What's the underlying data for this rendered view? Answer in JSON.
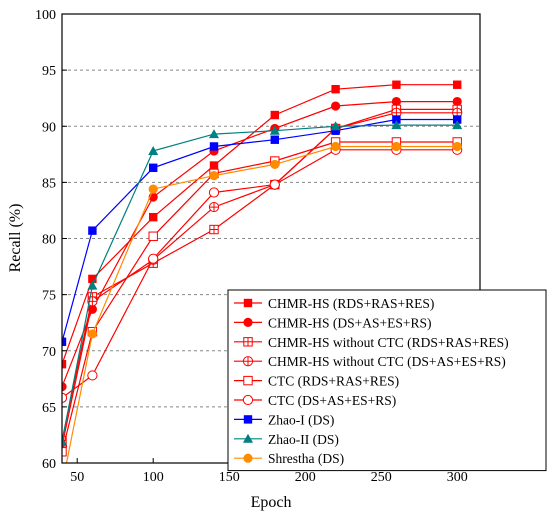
{
  "chart_data": {
    "type": "line",
    "xlabel": "Epoch",
    "ylabel": "Recall (%)",
    "xlim": [
      40,
      315
    ],
    "ylim": [
      60,
      100
    ],
    "x_ticks": [
      50,
      100,
      150,
      200,
      250,
      300
    ],
    "y_ticks": [
      60,
      65,
      70,
      75,
      80,
      85,
      90,
      95,
      100
    ],
    "grid": "horizontal dashed",
    "legend_position": "bottom-right",
    "series": [
      {
        "name": "CHMR-HS (RDS+RAS+RES)",
        "color": "#ff0000",
        "marker": "square-filled",
        "x": [
          40,
          60,
          100,
          140,
          180,
          220,
          260,
          300
        ],
        "y": [
          68.8,
          76.4,
          81.9,
          86.5,
          91.0,
          93.3,
          93.7,
          93.7
        ]
      },
      {
        "name": "CHMR-HS (DS+AS+ES+RS)",
        "color": "#ff0000",
        "marker": "circle-filled",
        "x": [
          40,
          60,
          100,
          140,
          180,
          220,
          260,
          300
        ],
        "y": [
          66.8,
          73.7,
          83.7,
          87.8,
          89.8,
          91.8,
          92.2,
          92.2
        ]
      },
      {
        "name": "CHMR-HS without CTC (RDS+RAS+RES)",
        "color": "#ff0000",
        "marker": "square-cross",
        "x": [
          40,
          60,
          100,
          140,
          180,
          220,
          260,
          300
        ],
        "y": [
          62.0,
          74.8,
          77.8,
          80.8,
          84.8,
          89.8,
          91.5,
          91.5
        ]
      },
      {
        "name": "CHMR-HS without CTC (DS+AS+ES+RS)",
        "color": "#ff0000",
        "marker": "circle-cross",
        "x": [
          40,
          60,
          100,
          140,
          180,
          220,
          260,
          300
        ],
        "y": [
          61.5,
          74.4,
          78.1,
          82.8,
          84.8,
          89.8,
          91.2,
          91.2
        ]
      },
      {
        "name": "CTC (RDS+RAS+RES)",
        "color": "#ff0000",
        "marker": "square-open",
        "x": [
          40,
          60,
          100,
          140,
          180,
          220,
          260,
          300
        ],
        "y": [
          61.0,
          71.7,
          80.2,
          85.8,
          86.9,
          88.6,
          88.6,
          88.6
        ]
      },
      {
        "name": "CTC (DS+AS+ES+RS)",
        "color": "#ff0000",
        "marker": "circle-open",
        "x": [
          40,
          60,
          100,
          140,
          180,
          220,
          260,
          300
        ],
        "y": [
          65.8,
          67.8,
          78.2,
          84.1,
          84.8,
          87.9,
          87.9,
          87.9
        ]
      },
      {
        "name": "Zhao-I (DS)",
        "color": "#0000ff",
        "marker": "square-filled",
        "x": [
          40,
          60,
          100,
          140,
          180,
          220,
          260,
          300
        ],
        "y": [
          70.8,
          80.7,
          86.3,
          88.2,
          88.8,
          89.6,
          90.6,
          90.6
        ]
      },
      {
        "name": "Zhao-II (DS)",
        "color": "#008080",
        "marker": "triangle-filled",
        "x": [
          40,
          60,
          100,
          140,
          180,
          220,
          260,
          300
        ],
        "y": [
          61.9,
          75.8,
          87.8,
          89.3,
          89.6,
          90.0,
          90.1,
          90.1
        ]
      },
      {
        "name": "Shrestha (DS)",
        "color": "#ff8c00",
        "marker": "circle-filled",
        "x": [
          40,
          60,
          100,
          140,
          180,
          220,
          260,
          300
        ],
        "y": [
          58.0,
          71.5,
          84.4,
          85.6,
          86.6,
          88.2,
          88.2,
          88.2
        ]
      }
    ]
  }
}
